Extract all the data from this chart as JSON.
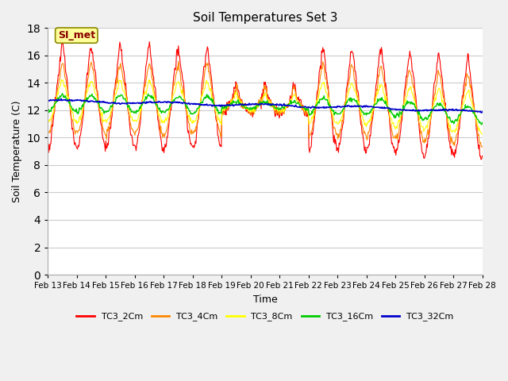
{
  "title": "Soil Temperatures Set 3",
  "xlabel": "Time",
  "ylabel": "Soil Temperature (C)",
  "ylim": [
    0,
    18
  ],
  "yticks": [
    0,
    2,
    4,
    6,
    8,
    10,
    12,
    14,
    16,
    18
  ],
  "xtick_labels": [
    "Feb 13",
    "Feb 14",
    "Feb 15",
    "Feb 16",
    "Feb 17",
    "Feb 18",
    "Feb 19",
    "Feb 20",
    "Feb 21",
    "Feb 22",
    "Feb 23",
    "Feb 24",
    "Feb 25",
    "Feb 26",
    "Feb 27",
    "Feb 28"
  ],
  "series_colors": {
    "TC3_2Cm": "#ff0000",
    "TC3_4Cm": "#ff8800",
    "TC3_8Cm": "#ffff00",
    "TC3_16Cm": "#00cc00",
    "TC3_32Cm": "#0000cc"
  },
  "fig_bg_color": "#f0f0f0",
  "plot_bg_color": "#ffffff",
  "grid_color": "#cccccc",
  "annotation_text": "SI_met",
  "annotation_fg": "#880000",
  "annotation_bg": "#ffff99",
  "annotation_border": "#888800"
}
